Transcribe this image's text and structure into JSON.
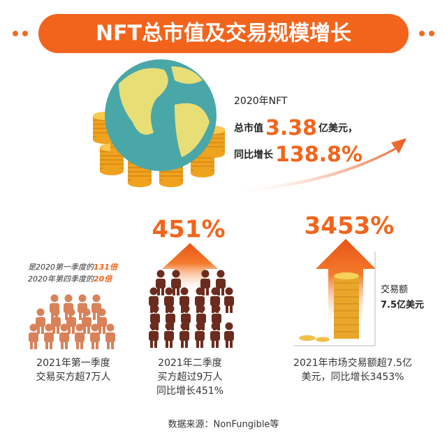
{
  "header": {
    "title": "NFT总市值及交易规模增长"
  },
  "market_cap": {
    "year_label": "2020年NFT",
    "cap_prefix": "总市值",
    "cap_value": "3.38",
    "cap_unit": "亿美元，",
    "growth_prefix": "同比增长",
    "growth_value": "138.8%"
  },
  "q1": {
    "note_line1_prefix": "是2020第一季度的",
    "note_line1_value": "131倍",
    "note_line2_prefix": "2020年第四季度的",
    "note_line2_value": "20倍",
    "caption": [
      "2021年第一季度",
      "交易买方超7万人"
    ]
  },
  "q2": {
    "growth": "451%",
    "caption": [
      "2021年二季度",
      "买方超过9万人",
      "同比增长451%"
    ]
  },
  "market": {
    "growth": "3453%",
    "side_label": [
      "交易额",
      "7.5亿美元"
    ],
    "caption": [
      "2021年市场交易额超7.5亿",
      "美元，同比增长3453%"
    ]
  },
  "source": "数据来源：NonFungible等"
}
